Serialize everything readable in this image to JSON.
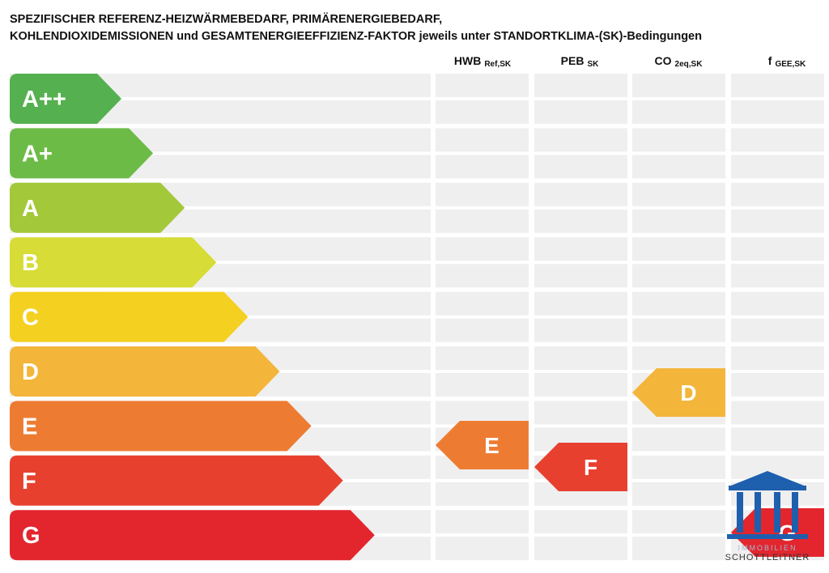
{
  "title": {
    "line1": "SPEZIFISCHER REFERENZ-HEIZWÄRMEBEDARF, PRIMÄRENERGIEBEDARF,",
    "line2": "KOHLENDIOXIDEMISSIONEN und GESAMTENERGIEEFFIZIENZ-FAKTOR jeweils unter STANDORTKLIMA-(SK)-Bedingungen"
  },
  "columns": [
    {
      "name": "HWB",
      "sub": "Ref,SK"
    },
    {
      "name": "PEB",
      "sub": "SK"
    },
    {
      "name": "CO",
      "sub": "2eq,SK"
    },
    {
      "name": "f",
      "sub": "GEE,SK"
    }
  ],
  "classes": [
    "A++",
    "A+",
    "A",
    "B",
    "C",
    "D",
    "E",
    "F",
    "G"
  ],
  "indicators": [
    {
      "label": "E"
    },
    {
      "label": "F"
    },
    {
      "label": "D"
    },
    {
      "label": "G"
    }
  ],
  "logo": {
    "tagline": "IMMOBILIEN",
    "name": "SCHOTTLEITNER"
  }
}
